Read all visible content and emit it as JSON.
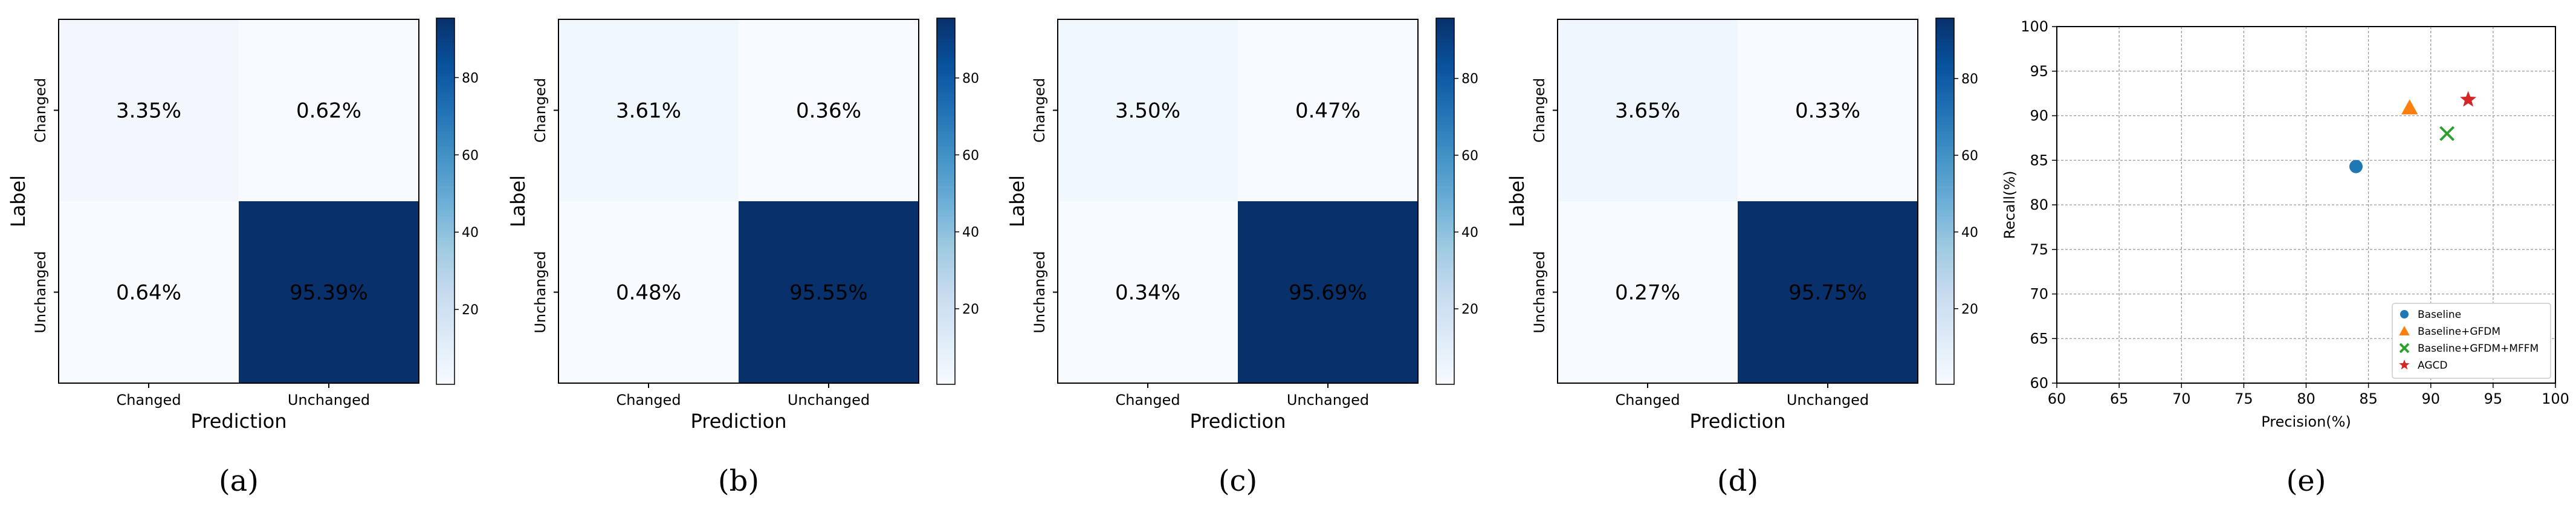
{
  "chart_data": [
    {
      "type": "heatmap",
      "caption": "(a)",
      "xlabel": "Prediction",
      "ylabel": "Label",
      "x_categories": [
        "Changed",
        "Unchanged"
      ],
      "y_categories": [
        "Changed",
        "Unchanged"
      ],
      "values": [
        [
          3.35,
          0.62
        ],
        [
          0.64,
          95.39
        ]
      ],
      "cell_labels": [
        [
          "3.35%",
          "0.62%"
        ],
        [
          "0.64%",
          "95.39%"
        ]
      ],
      "colorbar": {
        "range": [
          0.62,
          95.39
        ],
        "ticks": [
          20,
          40,
          60,
          80
        ],
        "colormap": "Blues"
      }
    },
    {
      "type": "heatmap",
      "caption": "(b)",
      "xlabel": "Prediction",
      "ylabel": "Label",
      "x_categories": [
        "Changed",
        "Unchanged"
      ],
      "y_categories": [
        "Changed",
        "Unchanged"
      ],
      "values": [
        [
          3.61,
          0.36
        ],
        [
          0.48,
          95.55
        ]
      ],
      "cell_labels": [
        [
          "3.61%",
          "0.36%"
        ],
        [
          "0.48%",
          "95.55%"
        ]
      ],
      "colorbar": {
        "range": [
          0.36,
          95.55
        ],
        "ticks": [
          20,
          40,
          60,
          80
        ],
        "colormap": "Blues"
      }
    },
    {
      "type": "heatmap",
      "caption": "(c)",
      "xlabel": "Prediction",
      "ylabel": "Label",
      "x_categories": [
        "Changed",
        "Unchanged"
      ],
      "y_categories": [
        "Changed",
        "Unchanged"
      ],
      "values": [
        [
          3.5,
          0.47
        ],
        [
          0.34,
          95.69
        ]
      ],
      "cell_labels": [
        [
          "3.50%",
          "0.47%"
        ],
        [
          "0.34%",
          "95.69%"
        ]
      ],
      "colorbar": {
        "range": [
          0.34,
          95.69
        ],
        "ticks": [
          20,
          40,
          60,
          80
        ],
        "colormap": "Blues"
      }
    },
    {
      "type": "heatmap",
      "caption": "(d)",
      "xlabel": "Prediction",
      "ylabel": "Label",
      "x_categories": [
        "Changed",
        "Unchanged"
      ],
      "y_categories": [
        "Changed",
        "Unchanged"
      ],
      "values": [
        [
          3.65,
          0.33
        ],
        [
          0.27,
          95.75
        ]
      ],
      "cell_labels": [
        [
          "3.65%",
          "0.33%"
        ],
        [
          "0.27%",
          "95.75%"
        ]
      ],
      "colorbar": {
        "range": [
          0.27,
          95.75
        ],
        "ticks": [
          20,
          40,
          60,
          80
        ],
        "colormap": "Blues"
      }
    },
    {
      "type": "scatter",
      "caption": "(e)",
      "xlabel": "Precision(%)",
      "ylabel": "Recall(%)",
      "xlim": [
        60,
        100
      ],
      "ylim": [
        60,
        100
      ],
      "xticks": [
        60,
        65,
        70,
        75,
        80,
        85,
        90,
        95,
        100
      ],
      "yticks": [
        60,
        65,
        70,
        75,
        80,
        85,
        90,
        95,
        100
      ],
      "grid": true,
      "legend_position": "bottom-right",
      "series": [
        {
          "name": "Baseline",
          "marker": "circle",
          "color": "#1f77b4",
          "x": [
            84.0
          ],
          "y": [
            84.3
          ]
        },
        {
          "name": "Baseline+GFDM",
          "marker": "triangle",
          "color": "#ff7f0e",
          "x": [
            88.3
          ],
          "y": [
            90.9
          ]
        },
        {
          "name": "Baseline+GFDM+MFFM",
          "marker": "x",
          "color": "#2ca02c",
          "x": [
            91.3
          ],
          "y": [
            88.0
          ]
        },
        {
          "name": "AGCD",
          "marker": "star",
          "color": "#d62728",
          "x": [
            93.0
          ],
          "y": [
            91.8
          ]
        }
      ]
    }
  ]
}
